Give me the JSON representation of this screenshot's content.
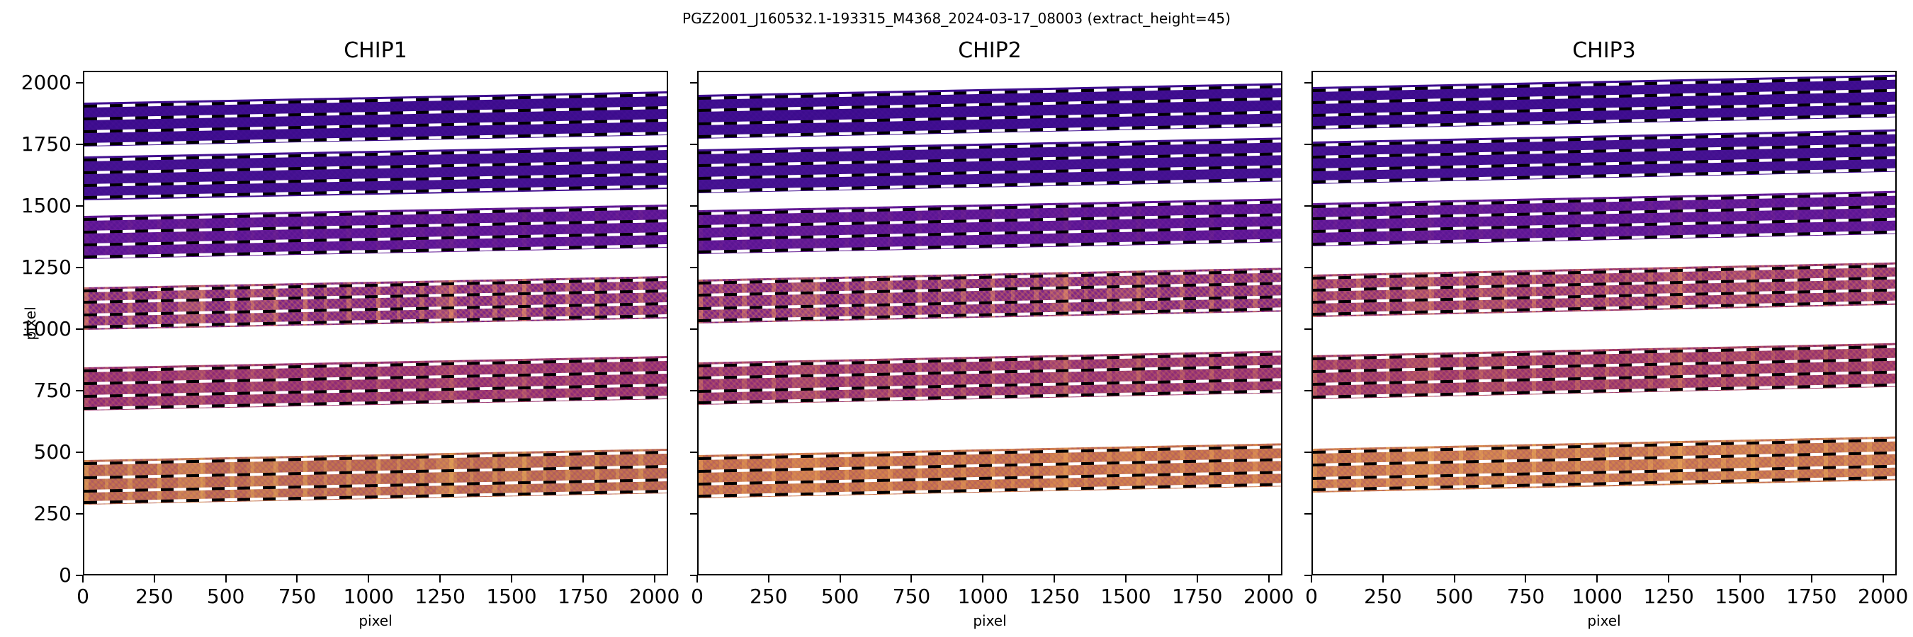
{
  "figure": {
    "title": "PGZ2001_J160532.1-193315_M4368_2024-03-17_08003  (extract_height=45)",
    "background": "#ffffff"
  },
  "colors": {
    "axis": "#000000",
    "dash_black": "#000000",
    "dash_white": "#ffffff"
  },
  "chart_data": {
    "type": "heatmap",
    "title": "PGZ2001_J160532.1-193315_M4368_2024-03-17_08003  (extract_height=45)",
    "xlabel": "pixel",
    "ylabel": "pixel",
    "xlim": [
      0,
      2048
    ],
    "ylim": [
      0,
      2048
    ],
    "x_ticks": [
      0,
      250,
      500,
      750,
      1000,
      1250,
      1500,
      1750,
      2000
    ],
    "y_ticks": [
      0,
      250,
      500,
      750,
      1000,
      1250,
      1500,
      1750,
      2000
    ],
    "grid": false,
    "legend": null,
    "panels": [
      {
        "title": "CHIP1",
        "show_y_tick_labels": true,
        "slope": 46,
        "bands": [
          {
            "y_top": 1925,
            "y_bottom": 1746,
            "lines": [
              1911,
              1858,
              1806,
              1755
            ],
            "base": "#3c0c8d",
            "speckle": "#6d22ae",
            "speckle_alpha": 0.08,
            "streak": "#f5944e",
            "streak_alpha": 0
          },
          {
            "y_top": 1705,
            "y_bottom": 1528,
            "lines": [
              1691,
              1640,
              1587,
              1537
            ],
            "base": "#42108f",
            "speckle": "#7326b0",
            "speckle_alpha": 0.08,
            "streak": "#f5944e",
            "streak_alpha": 0
          },
          {
            "y_top": 1466,
            "y_bottom": 1290,
            "lines": [
              1452,
              1401,
              1349,
              1299
            ],
            "base": "#5a1493",
            "speckle": "#a43bb0",
            "speckle_alpha": 0.12,
            "streak": "#f5944e",
            "streak_alpha": 0.05
          },
          {
            "y_top": 1174,
            "y_bottom": 1003,
            "lines": [
              1160,
              1113,
              1061,
              1012
            ],
            "base": "#7c2486",
            "speckle": "#f08c4a",
            "speckle_alpha": 0.26,
            "streak": "#ffa95a",
            "streak_alpha": 0.45
          },
          {
            "y_top": 850,
            "y_bottom": 674,
            "lines": [
              836,
              785,
              731,
              683
            ],
            "base": "#8e2a77",
            "speckle": "#e9874e",
            "speckle_alpha": 0.2,
            "streak": "#f2a156",
            "streak_alpha": 0.22
          },
          {
            "y_top": 475,
            "y_bottom": 293,
            "lines": [
              461,
              404,
              348,
              302
            ],
            "base": "#c4744d",
            "speckle": "#8c2a81",
            "speckle_alpha": 0.22,
            "streak": "#f0b857",
            "streak_alpha": 0.45
          }
        ]
      },
      {
        "title": "CHIP2",
        "show_y_tick_labels": false,
        "slope": 48,
        "bands": [
          {
            "y_top": 1956,
            "y_bottom": 1778,
            "lines": [
              1942,
              1892,
              1839,
              1787
            ],
            "base": "#3c0c8d",
            "speckle": "#6d22ae",
            "speckle_alpha": 0.08,
            "streak": "#f5944e",
            "streak_alpha": 0
          },
          {
            "y_top": 1734,
            "y_bottom": 1556,
            "lines": [
              1720,
              1669,
              1616,
              1565
            ],
            "base": "#42108f",
            "speckle": "#7326b0",
            "speckle_alpha": 0.08,
            "streak": "#f5944e",
            "streak_alpha": 0
          },
          {
            "y_top": 1487,
            "y_bottom": 1309,
            "lines": [
              1473,
              1422,
              1370,
              1318
            ],
            "base": "#5a1493",
            "speckle": "#a43bb0",
            "speckle_alpha": 0.12,
            "streak": "#f5944e",
            "streak_alpha": 0.05
          },
          {
            "y_top": 1207,
            "y_bottom": 1030,
            "lines": [
              1193,
              1143,
              1090,
              1039
            ],
            "base": "#7e2684",
            "speckle": "#f08c4a",
            "speckle_alpha": 0.28,
            "streak": "#ffa95a",
            "streak_alpha": 0.4
          },
          {
            "y_top": 869,
            "y_bottom": 697,
            "lines": [
              855,
              806,
              752,
              706
            ],
            "base": "#8f2d76",
            "speckle": "#e9874e",
            "speckle_alpha": 0.22,
            "streak": "#f2a156",
            "streak_alpha": 0.3
          },
          {
            "y_top": 495,
            "y_bottom": 320,
            "lines": [
              481,
              430,
              376,
              329
            ],
            "base": "#cd7b49",
            "speckle": "#8c2a81",
            "speckle_alpha": 0.2,
            "streak": "#eda455",
            "streak_alpha": 0.5
          }
        ]
      },
      {
        "title": "CHIP3",
        "show_y_tick_labels": false,
        "slope": 50,
        "bands": [
          {
            "y_top": 1987,
            "y_bottom": 1815,
            "lines": [
              1973,
              1925,
              1873,
              1824
            ],
            "base": "#3c0c8d",
            "speckle": "#6d22ae",
            "speckle_alpha": 0.08,
            "streak": "#f5944e",
            "streak_alpha": 0
          },
          {
            "y_top": 1766,
            "y_bottom": 1594,
            "lines": [
              1752,
              1704,
              1651,
              1603
            ],
            "base": "#42108f",
            "speckle": "#7326b0",
            "speckle_alpha": 0.08,
            "streak": "#f5944e",
            "streak_alpha": 0
          },
          {
            "y_top": 1517,
            "y_bottom": 1342,
            "lines": [
              1503,
              1453,
              1402,
              1351
            ],
            "base": "#5c1694",
            "speckle": "#a43bb0",
            "speckle_alpha": 0.12,
            "streak": "#f5944e",
            "streak_alpha": 0.05
          },
          {
            "y_top": 1227,
            "y_bottom": 1056,
            "lines": [
              1213,
              1165,
              1114,
              1065
            ],
            "base": "#8f3178",
            "speckle": "#f08c4a",
            "speckle_alpha": 0.26,
            "streak": "#ffa95a",
            "streak_alpha": 0.35
          },
          {
            "y_top": 898,
            "y_bottom": 720,
            "lines": [
              884,
              832,
              779,
              729
            ],
            "base": "#95326f",
            "speckle": "#e9874e",
            "speckle_alpha": 0.22,
            "streak": "#f2a156",
            "streak_alpha": 0.3
          },
          {
            "y_top": 519,
            "y_bottom": 342,
            "lines": [
              505,
              454,
              398,
              351
            ],
            "base": "#d0814d",
            "speckle": "#8c2a81",
            "speckle_alpha": 0.18,
            "streak": "#efae58",
            "streak_alpha": 0.5
          }
        ]
      }
    ]
  }
}
